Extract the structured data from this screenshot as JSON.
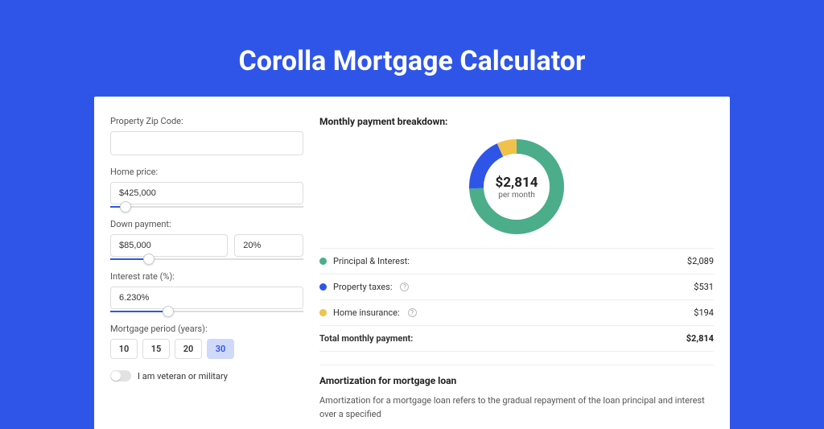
{
  "page": {
    "background_color": "#2f55e8",
    "title": "Corolla Mortgage Calculator"
  },
  "form": {
    "zip": {
      "label": "Property Zip Code:",
      "value": ""
    },
    "home_price": {
      "label": "Home price:",
      "value": "$425,000",
      "slider_pct": 8
    },
    "down_payment": {
      "label": "Down payment:",
      "value": "$85,000",
      "pct_value": "20%",
      "slider_pct": 20
    },
    "interest_rate": {
      "label": "Interest rate (%):",
      "value": "6.230%",
      "slider_pct": 30
    },
    "period": {
      "label": "Mortgage period (years):",
      "options": [
        "10",
        "15",
        "20",
        "30"
      ],
      "selected": "30"
    },
    "veteran": {
      "label": "I am veteran or military",
      "on": false
    }
  },
  "breakdown": {
    "title": "Monthly payment breakdown:",
    "center_amount": "$2,814",
    "center_sub": "per month",
    "donut": {
      "slices": [
        {
          "name": "principal_interest",
          "value": 2089,
          "color": "#4bad8a"
        },
        {
          "name": "property_taxes",
          "value": 531,
          "color": "#2f55e8"
        },
        {
          "name": "home_insurance",
          "value": 194,
          "color": "#f0c24b"
        }
      ],
      "track_color": "#f0f0f0",
      "stroke_width": 18
    },
    "legend": [
      {
        "label": "Principal & Interest:",
        "value": "$2,089",
        "color": "#4bad8a",
        "info": false
      },
      {
        "label": "Property taxes:",
        "value": "$531",
        "color": "#2f55e8",
        "info": true
      },
      {
        "label": "Home insurance:",
        "value": "$194",
        "color": "#f0c24b",
        "info": true
      }
    ],
    "total": {
      "label": "Total monthly payment:",
      "value": "$2,814"
    }
  },
  "amortization": {
    "title": "Amortization for mortgage loan",
    "body": "Amortization for a mortgage loan refers to the gradual repayment of the loan principal and interest over a specified"
  }
}
